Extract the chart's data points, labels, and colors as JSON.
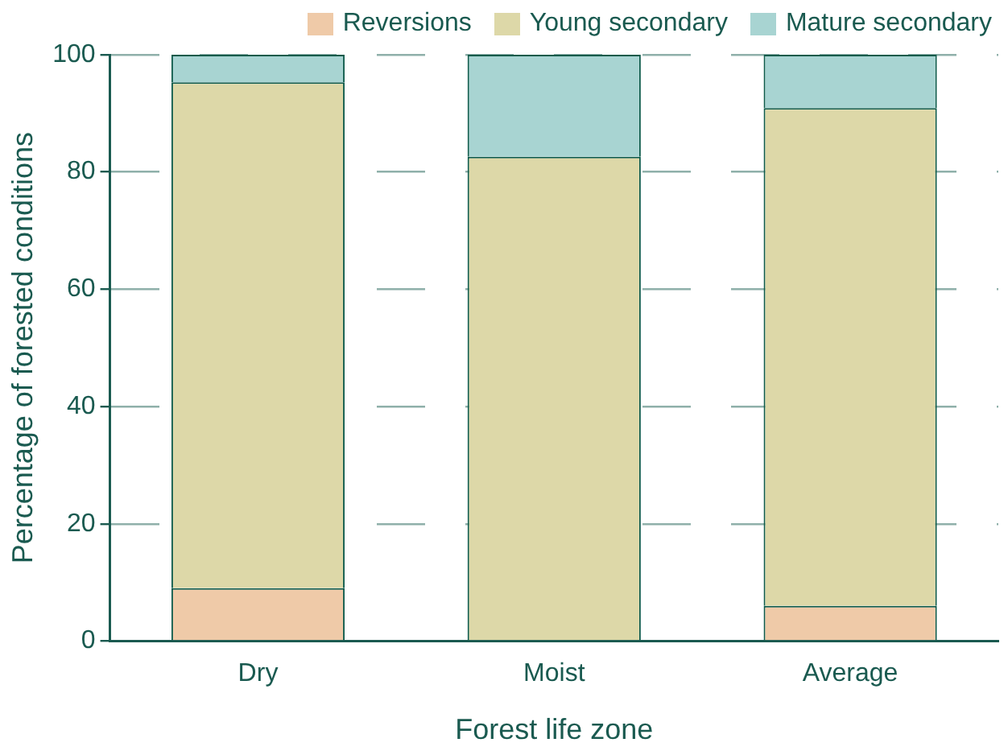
{
  "chart_data": {
    "type": "bar",
    "stacked": true,
    "xlabel": "Forest life zone",
    "ylabel": "Percentage of forested conditions",
    "categories": [
      "Dry",
      "Moist",
      "Average"
    ],
    "series": [
      {
        "name": "Reversions",
        "color": "#efcaa8",
        "values": [
          9,
          0,
          6
        ]
      },
      {
        "name": "Young secondary",
        "color": "#ddd8a8",
        "values": [
          86.3,
          82.6,
          84.9
        ]
      },
      {
        "name": "Mature secondary",
        "color": "#a8d4d2",
        "values": [
          4.7,
          17.4,
          9.1
        ]
      }
    ],
    "ylim": [
      0,
      100
    ],
    "yticks": [
      0,
      20,
      40,
      60,
      80,
      100
    ],
    "grid": "y",
    "legend": "top right"
  }
}
